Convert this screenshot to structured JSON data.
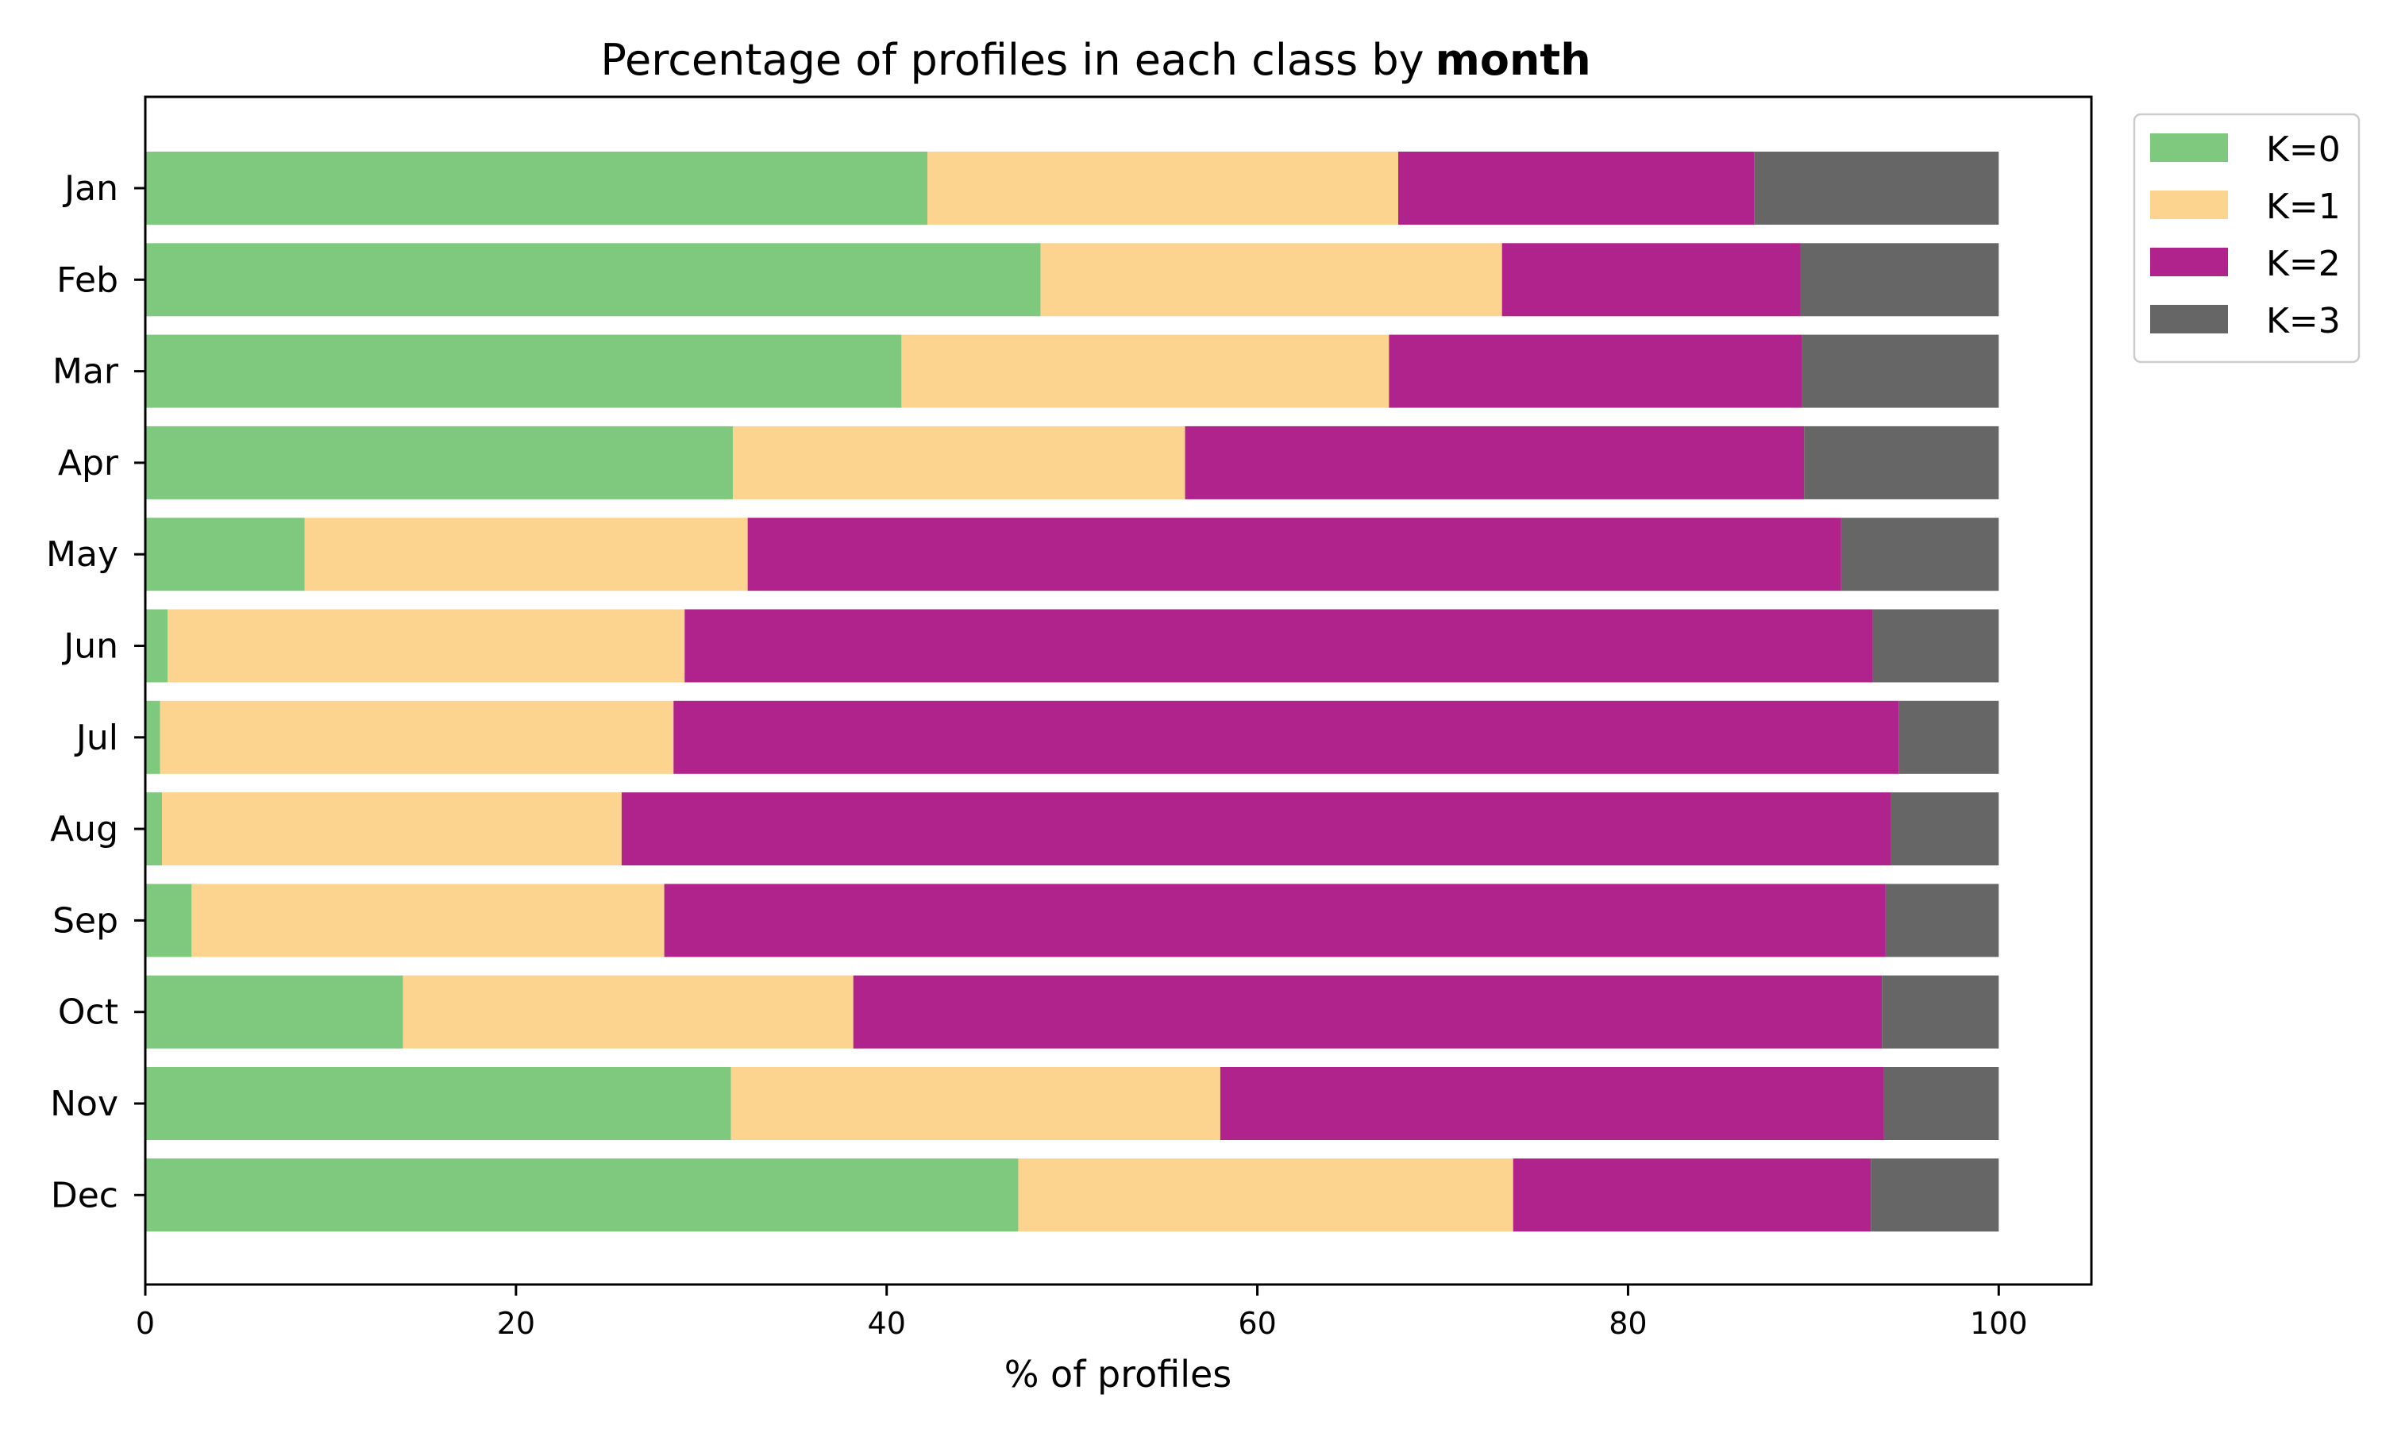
{
  "chart_data": {
    "type": "bar",
    "orientation": "horizontal",
    "stacked": true,
    "title": "Percentage of profiles in each class by",
    "title_bold": "month",
    "xlabel": "% of profiles",
    "ylabel": "",
    "xlim": [
      0,
      105
    ],
    "xticks": [
      0,
      20,
      40,
      60,
      80,
      100
    ],
    "grid": false,
    "legend_position": "top-right outside",
    "categories": [
      "Jan",
      "Feb",
      "Mar",
      "Apr",
      "May",
      "Jun",
      "Jul",
      "Aug",
      "Sep",
      "Oct",
      "Nov",
      "Dec"
    ],
    "series": [
      {
        "name": "K=0",
        "color": "#7fc97f",
        "values": [
          42.2,
          48.3,
          40.8,
          31.7,
          8.6,
          1.2,
          0.8,
          0.9,
          2.5,
          13.9,
          31.6,
          47.1
        ]
      },
      {
        "name": "K=1",
        "color": "#fdd48f",
        "values": [
          25.4,
          24.9,
          26.3,
          24.4,
          23.9,
          27.9,
          27.7,
          24.8,
          25.5,
          24.3,
          26.4,
          26.7
        ]
      },
      {
        "name": "K=2",
        "color": "#b0238c",
        "values": [
          19.2,
          16.1,
          22.3,
          33.4,
          59.0,
          64.1,
          66.1,
          68.5,
          65.9,
          55.5,
          35.8,
          19.3
        ]
      },
      {
        "name": "K=3",
        "color": "#666666",
        "values": [
          13.2,
          10.7,
          10.6,
          10.5,
          8.5,
          6.8,
          5.4,
          5.8,
          6.1,
          6.3,
          6.2,
          6.9
        ]
      }
    ]
  }
}
